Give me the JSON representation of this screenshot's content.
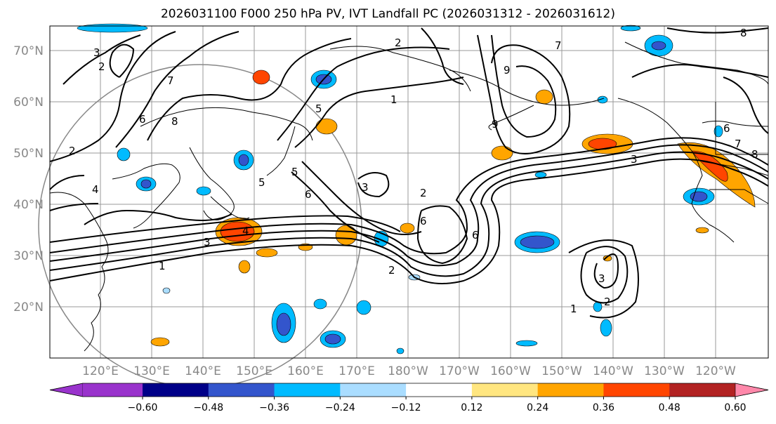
{
  "title": "2026031100 F000 250 hPa PV, IVT Landfall PC (2026031312 - 2026031612)",
  "lat_labels": [
    "70°N",
    "60°N",
    "50°N",
    "40°N",
    "30°N",
    "20°N"
  ],
  "lon_labels": [
    "120°E",
    "130°E",
    "140°E",
    "150°E",
    "160°E",
    "170°E",
    "180°W",
    "170°W",
    "160°W",
    "150°W",
    "140°W",
    "130°W",
    "120°W"
  ],
  "colorbar": {
    "tick_labels": [
      "−0.60",
      "−0.48",
      "−0.36",
      "−0.24",
      "−0.12",
      "0.12",
      "0.24",
      "0.36",
      "0.48",
      "0.60"
    ],
    "colors": [
      "#9933cc",
      "#000088",
      "#3355cc",
      "#00bbff",
      "#aaddff",
      "#ffffff",
      "#ffe680",
      "#ffa500",
      "#ff4500",
      "#b22222",
      "#ff88aa"
    ]
  },
  "contour_labels": [
    "1",
    "2",
    "3",
    "4",
    "5",
    "6",
    "7",
    "8",
    "9"
  ]
}
